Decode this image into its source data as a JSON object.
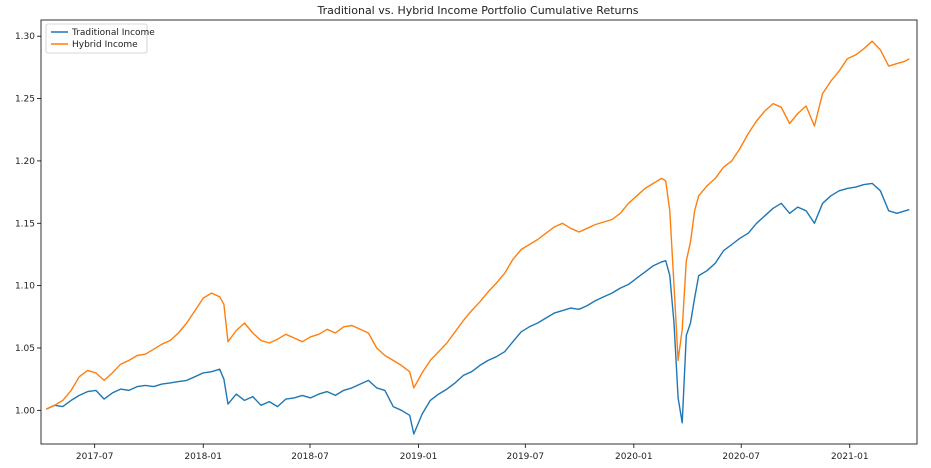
{
  "chart_data": {
    "type": "line",
    "title": "Traditional vs. Hybrid Income Portfolio Cumulative Returns",
    "xlabel": "",
    "ylabel": "",
    "xlim": [
      "2017-04-01",
      "2021-04-25"
    ],
    "ylim": [
      0.973,
      1.313
    ],
    "x_ticks": [
      "2017-07",
      "2018-01",
      "2018-07",
      "2019-01",
      "2019-07",
      "2020-01",
      "2020-07",
      "2021-01"
    ],
    "y_ticks": [
      "1.00",
      "1.05",
      "1.10",
      "1.15",
      "1.20",
      "1.25",
      "1.30"
    ],
    "grid": false,
    "legend_position": "top-left",
    "x": [
      "2017-04-10",
      "2017-04-24",
      "2017-05-08",
      "2017-05-22",
      "2017-06-05",
      "2017-06-19",
      "2017-07-03",
      "2017-07-17",
      "2017-07-31",
      "2017-08-14",
      "2017-08-28",
      "2017-09-11",
      "2017-09-25",
      "2017-10-09",
      "2017-10-23",
      "2017-11-06",
      "2017-11-20",
      "2017-12-04",
      "2017-12-18",
      "2018-01-01",
      "2018-01-15",
      "2018-01-29",
      "2018-02-05",
      "2018-02-12",
      "2018-02-26",
      "2018-03-12",
      "2018-03-26",
      "2018-04-09",
      "2018-04-23",
      "2018-05-07",
      "2018-05-21",
      "2018-06-04",
      "2018-06-18",
      "2018-07-02",
      "2018-07-16",
      "2018-07-30",
      "2018-08-13",
      "2018-08-27",
      "2018-09-10",
      "2018-09-24",
      "2018-10-08",
      "2018-10-22",
      "2018-11-05",
      "2018-11-19",
      "2018-12-03",
      "2018-12-17",
      "2018-12-24",
      "2019-01-07",
      "2019-01-21",
      "2019-02-04",
      "2019-02-18",
      "2019-03-04",
      "2019-03-18",
      "2019-04-01",
      "2019-04-15",
      "2019-04-29",
      "2019-05-13",
      "2019-05-27",
      "2019-06-10",
      "2019-06-24",
      "2019-07-08",
      "2019-07-22",
      "2019-08-05",
      "2019-08-19",
      "2019-09-02",
      "2019-09-16",
      "2019-09-30",
      "2019-10-14",
      "2019-10-28",
      "2019-11-11",
      "2019-11-25",
      "2019-12-09",
      "2019-12-23",
      "2020-01-06",
      "2020-01-20",
      "2020-02-03",
      "2020-02-17",
      "2020-02-24",
      "2020-03-02",
      "2020-03-09",
      "2020-03-16",
      "2020-03-23",
      "2020-03-30",
      "2020-04-06",
      "2020-04-13",
      "2020-04-20",
      "2020-05-04",
      "2020-05-18",
      "2020-06-01",
      "2020-06-15",
      "2020-06-29",
      "2020-07-13",
      "2020-07-27",
      "2020-08-10",
      "2020-08-24",
      "2020-09-07",
      "2020-09-21",
      "2020-10-05",
      "2020-10-19",
      "2020-11-02",
      "2020-11-16",
      "2020-11-30",
      "2020-12-14",
      "2020-12-28",
      "2021-01-11",
      "2021-01-25",
      "2021-02-08",
      "2021-02-22",
      "2021-03-08",
      "2021-03-22",
      "2021-04-05",
      "2021-04-12"
    ],
    "series": [
      {
        "name": "Traditional Income",
        "color": "#1f77b4",
        "values": [
          1.001,
          1.004,
          1.003,
          1.008,
          1.012,
          1.015,
          1.016,
          1.009,
          1.014,
          1.017,
          1.016,
          1.019,
          1.02,
          1.019,
          1.021,
          1.022,
          1.023,
          1.024,
          1.027,
          1.03,
          1.031,
          1.033,
          1.025,
          1.005,
          1.013,
          1.008,
          1.011,
          1.004,
          1.007,
          1.003,
          1.009,
          1.01,
          1.012,
          1.01,
          1.013,
          1.015,
          1.012,
          1.016,
          1.018,
          1.021,
          1.024,
          1.018,
          1.016,
          1.003,
          1.0,
          0.996,
          0.981,
          0.997,
          1.008,
          1.013,
          1.017,
          1.022,
          1.028,
          1.031,
          1.036,
          1.04,
          1.043,
          1.047,
          1.055,
          1.063,
          1.067,
          1.07,
          1.074,
          1.078,
          1.08,
          1.082,
          1.081,
          1.084,
          1.088,
          1.091,
          1.094,
          1.098,
          1.101,
          1.106,
          1.111,
          1.116,
          1.119,
          1.12,
          1.108,
          1.07,
          1.01,
          0.99,
          1.06,
          1.07,
          1.09,
          1.108,
          1.112,
          1.118,
          1.128,
          1.133,
          1.138,
          1.142,
          1.15,
          1.156,
          1.162,
          1.166,
          1.158,
          1.163,
          1.16,
          1.15,
          1.166,
          1.172,
          1.176,
          1.178,
          1.179,
          1.181,
          1.182,
          1.176,
          1.16,
          1.158,
          1.16,
          1.161
        ]
      },
      {
        "name": "Hybrid Income",
        "color": "#ff7f0e",
        "values": [
          1.001,
          1.004,
          1.008,
          1.016,
          1.027,
          1.032,
          1.03,
          1.024,
          1.03,
          1.037,
          1.04,
          1.044,
          1.045,
          1.049,
          1.053,
          1.056,
          1.062,
          1.07,
          1.08,
          1.09,
          1.094,
          1.091,
          1.085,
          1.055,
          1.064,
          1.07,
          1.062,
          1.056,
          1.054,
          1.057,
          1.061,
          1.058,
          1.055,
          1.059,
          1.061,
          1.065,
          1.062,
          1.067,
          1.068,
          1.065,
          1.062,
          1.05,
          1.044,
          1.04,
          1.036,
          1.031,
          1.018,
          1.03,
          1.04,
          1.047,
          1.054,
          1.063,
          1.072,
          1.08,
          1.087,
          1.095,
          1.102,
          1.11,
          1.121,
          1.129,
          1.133,
          1.137,
          1.142,
          1.147,
          1.15,
          1.146,
          1.143,
          1.146,
          1.149,
          1.151,
          1.153,
          1.158,
          1.166,
          1.172,
          1.178,
          1.182,
          1.186,
          1.184,
          1.16,
          1.1,
          1.04,
          1.065,
          1.12,
          1.135,
          1.16,
          1.172,
          1.18,
          1.186,
          1.195,
          1.2,
          1.21,
          1.222,
          1.232,
          1.24,
          1.246,
          1.243,
          1.23,
          1.238,
          1.244,
          1.228,
          1.254,
          1.264,
          1.272,
          1.282,
          1.285,
          1.29,
          1.296,
          1.289,
          1.276,
          1.278,
          1.28,
          1.282
        ]
      }
    ]
  }
}
